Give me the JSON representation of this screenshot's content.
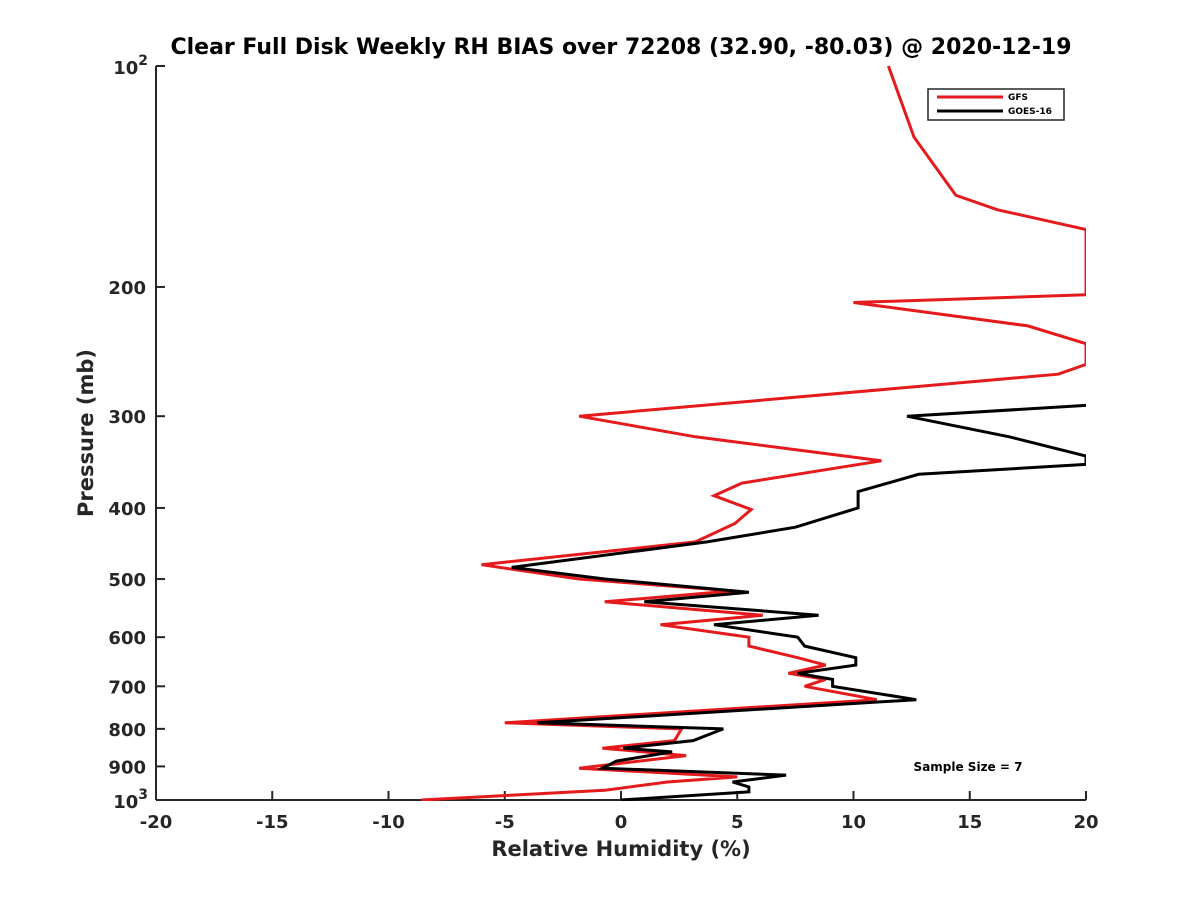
{
  "chart_data": {
    "type": "line",
    "title": "Clear Full Disk Weekly RH BIAS over 72208 (32.90, -80.03) @ 2020-12-19",
    "xlabel": "Relative Humidity (%)",
    "ylabel": "Pressure (mb)",
    "xlim": [
      -20,
      20
    ],
    "ylim": [
      100,
      1000
    ],
    "yscale": "log",
    "y_reversed": true,
    "grid": false,
    "legend_position": "top-right",
    "annotation": "Sample Size = 7",
    "xticks": [
      "-20",
      "-15",
      "-10",
      "-5",
      "0",
      "5",
      "10",
      "15",
      "20"
    ],
    "xtick_values": [
      -20,
      -15,
      -10,
      -5,
      0,
      5,
      10,
      15,
      20
    ],
    "yticks": [
      {
        "value": 100,
        "base": "10",
        "exp": "2"
      },
      {
        "value": 200,
        "base": "200",
        "exp": ""
      },
      {
        "value": 300,
        "base": "300",
        "exp": ""
      },
      {
        "value": 400,
        "base": "400",
        "exp": ""
      },
      {
        "value": 500,
        "base": "500",
        "exp": ""
      },
      {
        "value": 600,
        "base": "600",
        "exp": ""
      },
      {
        "value": 700,
        "base": "700",
        "exp": ""
      },
      {
        "value": 800,
        "base": "800",
        "exp": ""
      },
      {
        "value": 900,
        "base": "900",
        "exp": ""
      },
      {
        "value": 1000,
        "base": "10",
        "exp": "3"
      }
    ],
    "series": [
      {
        "name": "GFS",
        "color": "#e41a1c",
        "points": [
          [
            11.5,
            100
          ],
          [
            12.6,
            125
          ],
          [
            14.4,
            150
          ],
          [
            16.2,
            157
          ],
          [
            20.0,
            167
          ],
          [
            20.0,
            205
          ],
          [
            10.0,
            210
          ],
          [
            17.5,
            226
          ],
          [
            20.0,
            239
          ],
          [
            20.0,
            255
          ],
          [
            18.8,
            263
          ],
          [
            -1.8,
            300
          ],
          [
            3.2,
            320
          ],
          [
            11.2,
            345
          ],
          [
            5.2,
            370
          ],
          [
            4.0,
            385
          ],
          [
            5.6,
            402
          ],
          [
            4.9,
            420
          ],
          [
            3.2,
            445
          ],
          [
            -6.0,
            478
          ],
          [
            -1.8,
            500
          ],
          [
            4.8,
            519
          ],
          [
            -0.7,
            537
          ],
          [
            6.1,
            560
          ],
          [
            1.7,
            577
          ],
          [
            5.5,
            600
          ],
          [
            5.5,
            617
          ],
          [
            7.6,
            640
          ],
          [
            8.8,
            655
          ],
          [
            7.2,
            672
          ],
          [
            8.8,
            685
          ],
          [
            7.9,
            700
          ],
          [
            11.0,
            730
          ],
          [
            -5.0,
            785
          ],
          [
            2.6,
            800
          ],
          [
            2.3,
            830
          ],
          [
            -0.8,
            850
          ],
          [
            2.8,
            870
          ],
          [
            -1.8,
            905
          ],
          [
            5.0,
            930
          ],
          [
            2.0,
            945
          ],
          [
            -0.7,
            970
          ],
          [
            -8.6,
            1000
          ]
        ]
      },
      {
        "name": "GOES-16",
        "color": "#000000",
        "points": [
          [
            20.0,
            290
          ],
          [
            12.3,
            300
          ],
          [
            16.7,
            320
          ],
          [
            20.0,
            340
          ],
          [
            20.0,
            349
          ],
          [
            12.8,
            360
          ],
          [
            10.2,
            380
          ],
          [
            10.2,
            400
          ],
          [
            7.5,
            425
          ],
          [
            3.7,
            445
          ],
          [
            -4.7,
            482
          ],
          [
            -0.7,
            500
          ],
          [
            5.5,
            521
          ],
          [
            1.0,
            537
          ],
          [
            8.5,
            560
          ],
          [
            4.0,
            577
          ],
          [
            7.6,
            600
          ],
          [
            7.9,
            617
          ],
          [
            10.1,
            640
          ],
          [
            10.1,
            655
          ],
          [
            7.6,
            672
          ],
          [
            9.1,
            685
          ],
          [
            9.1,
            700
          ],
          [
            12.7,
            730
          ],
          [
            -3.6,
            785
          ],
          [
            4.4,
            800
          ],
          [
            3.1,
            830
          ],
          [
            0.1,
            850
          ],
          [
            2.2,
            860
          ],
          [
            -0.2,
            885
          ],
          [
            -0.8,
            905
          ],
          [
            7.1,
            925
          ],
          [
            4.8,
            945
          ],
          [
            5.5,
            960
          ],
          [
            5.5,
            975
          ],
          [
            0.0,
            1000
          ]
        ]
      }
    ]
  }
}
